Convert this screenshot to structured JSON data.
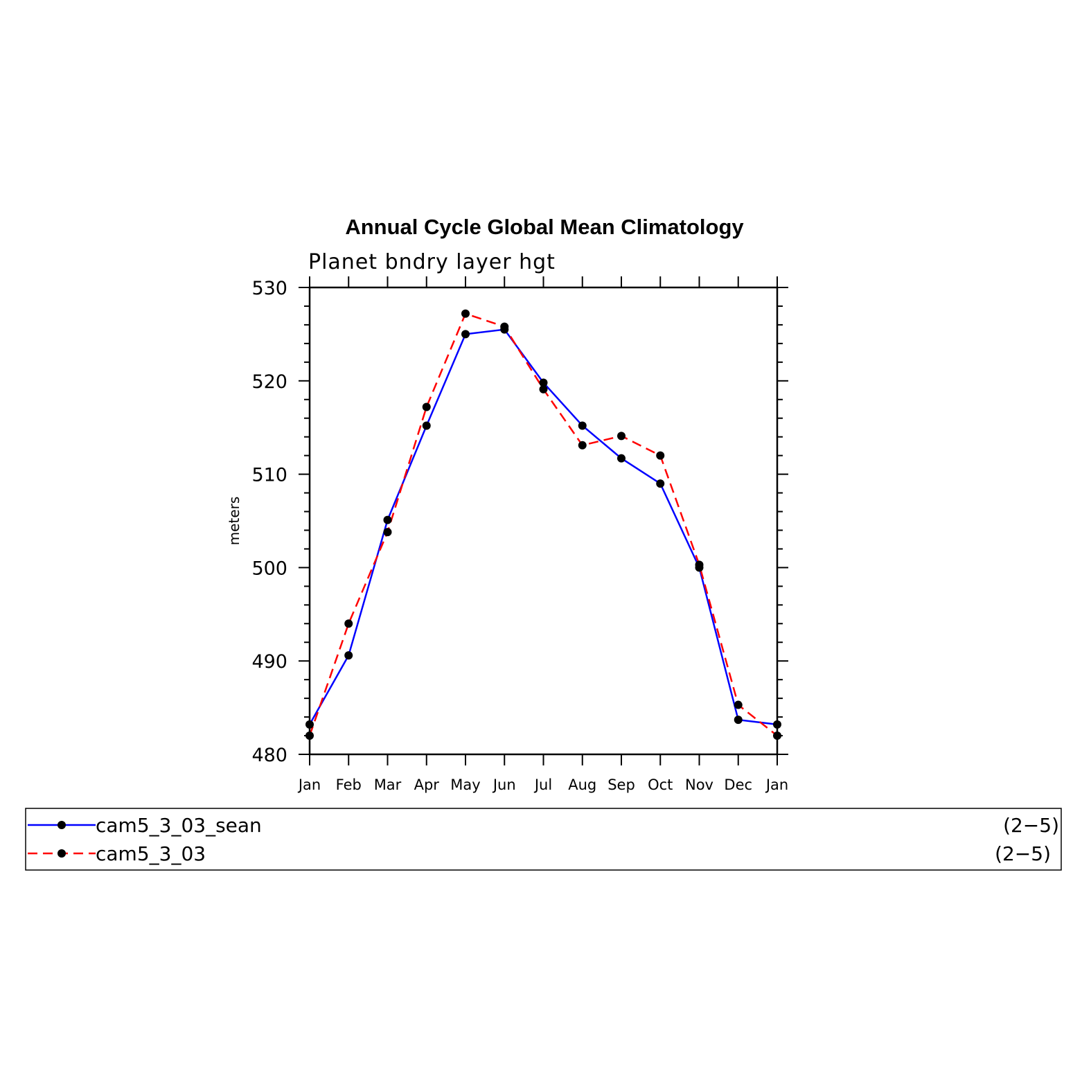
{
  "chart_data": {
    "type": "line",
    "title": "Annual Cycle Global Mean Climatology",
    "subtitle": "Planet bndry layer hgt",
    "xlabel": "",
    "ylabel": "meters",
    "categories": [
      "Jan",
      "Feb",
      "Mar",
      "Apr",
      "May",
      "Jun",
      "Jul",
      "Aug",
      "Sep",
      "Oct",
      "Nov",
      "Dec",
      "Jan"
    ],
    "ylim": [
      480,
      530
    ],
    "yticks": [
      "480",
      "490",
      "500",
      "510",
      "520",
      "530"
    ],
    "grid": false,
    "legend_position": "bottom",
    "series": [
      {
        "name": "cam5_3_03_sean",
        "range_label": "(2−5)",
        "color": "#0000ff",
        "dash": "solid",
        "marker": "circle",
        "values": [
          483.2,
          490.6,
          505.1,
          515.2,
          525.0,
          525.5,
          519.8,
          515.2,
          511.7,
          509.0,
          500.0,
          483.7,
          483.2
        ]
      },
      {
        "name": "cam5_3_03",
        "range_label": "(2−5)",
        "color": "#ff0000",
        "dash": "dashed",
        "marker": "circle",
        "values": [
          482.0,
          494.0,
          503.8,
          517.2,
          527.2,
          525.8,
          519.1,
          513.1,
          514.1,
          512.0,
          500.3,
          485.3,
          482.0
        ]
      }
    ]
  }
}
